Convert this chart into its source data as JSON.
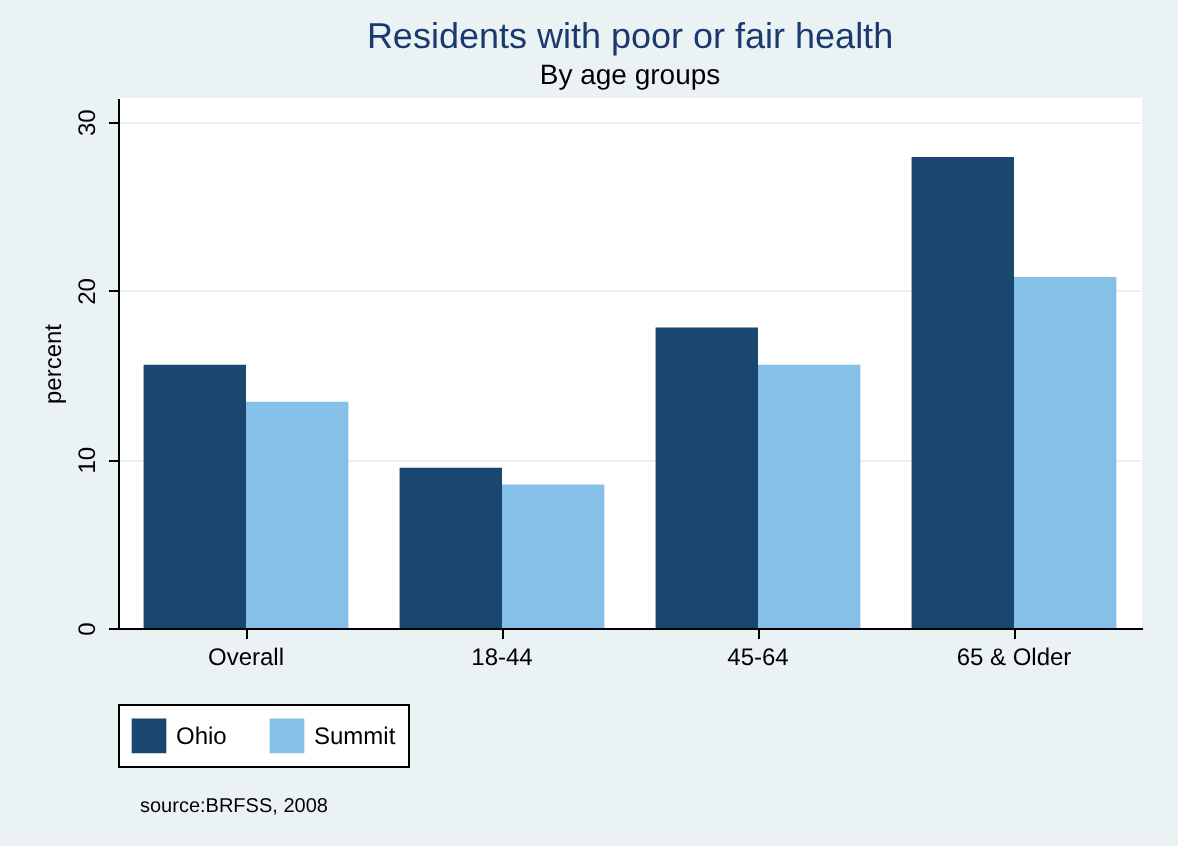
{
  "chart_data": {
    "type": "bar",
    "title": "Residents with poor or fair health",
    "subtitle": "By age groups",
    "ylabel": "percent",
    "categories": [
      "Overall",
      "18-44",
      "45-64",
      "65 & Older"
    ],
    "series": [
      {
        "name": "Ohio",
        "color": "#1a476f",
        "values": [
          15.6,
          9.5,
          17.8,
          27.9
        ]
      },
      {
        "name": "Summit",
        "color": "#85c0e9",
        "values": [
          13.4,
          8.5,
          15.6,
          20.8
        ]
      }
    ],
    "ylim": [
      0,
      31.4
    ],
    "yticks": [
      0,
      10,
      20,
      30
    ],
    "grid": "y",
    "legend": "bottom",
    "annotations": [
      "source:BRFSS, 2008"
    ]
  }
}
